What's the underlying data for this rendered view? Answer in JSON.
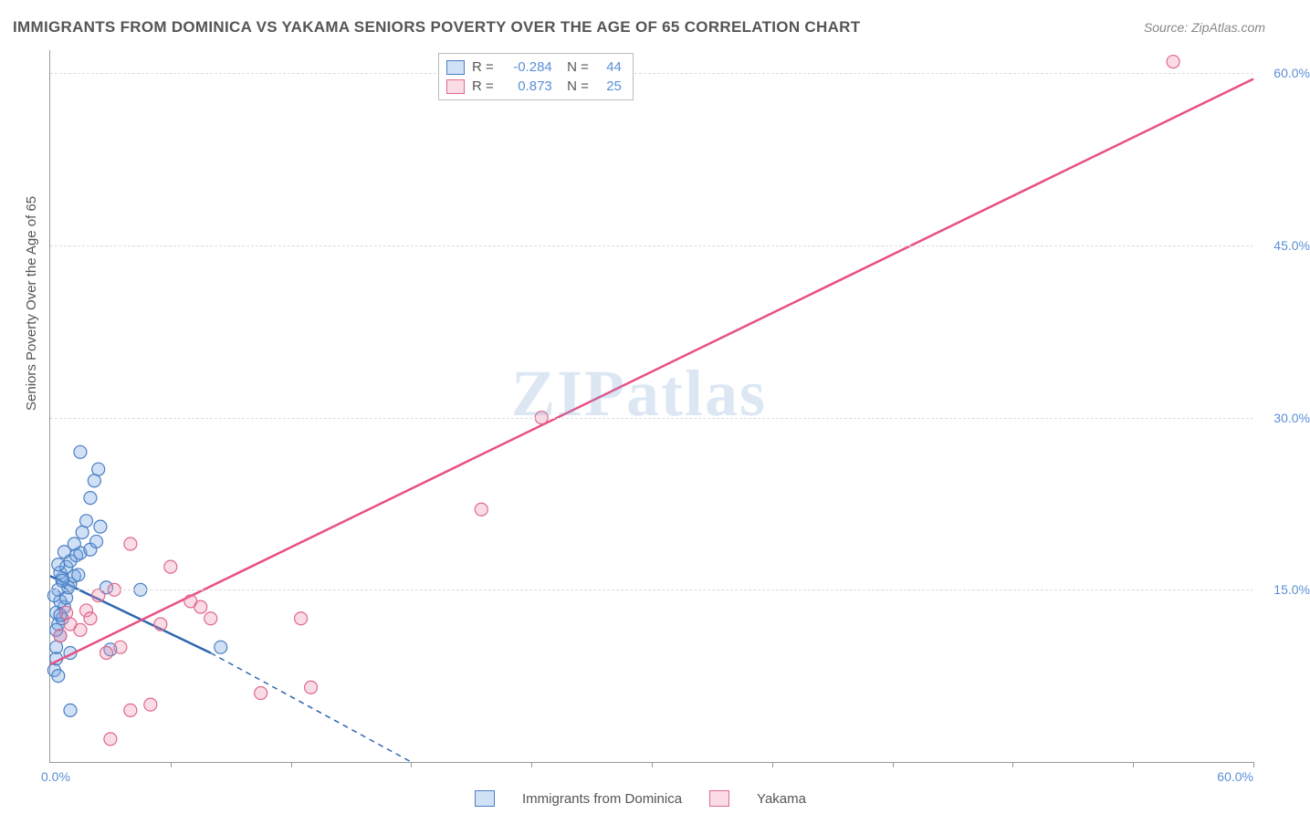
{
  "title": "IMMIGRANTS FROM DOMINICA VS YAKAMA SENIORS POVERTY OVER THE AGE OF 65 CORRELATION CHART",
  "source": "Source: ZipAtlas.com",
  "ylabel": "Seniors Poverty Over the Age of 65",
  "watermark": "ZIPatlas",
  "chart": {
    "type": "scatter",
    "xmin": 0,
    "xmax": 60,
    "ymin": 0,
    "ymax": 62,
    "x_label_min": "0.0%",
    "x_label_max": "60.0%",
    "y_ticks": [
      {
        "v": 15,
        "label": "15.0%"
      },
      {
        "v": 30,
        "label": "30.0%"
      },
      {
        "v": 45,
        "label": "45.0%"
      },
      {
        "v": 60,
        "label": "60.0%"
      }
    ],
    "x_tick_marks": [
      6,
      12,
      18,
      24,
      30,
      36,
      42,
      48,
      54,
      60
    ],
    "background_color": "#ffffff",
    "grid_color": "#dddddd",
    "axis_color": "#999999",
    "marker_radius": 7,
    "marker_stroke_width": 1.2,
    "line_width_solid": 2.5,
    "line_width_dashed": 1.5
  },
  "series": [
    {
      "name": "Immigrants from Dominica",
      "fill": "rgba(120,165,225,0.35)",
      "stroke": "#4a7fc4",
      "line_color": "#2e66b0",
      "R": "-0.284",
      "N": "44",
      "trend": {
        "x1": 0,
        "y1": 16.2,
        "x2_solid": 8,
        "y2_solid": 9.5,
        "x2_dash": 18,
        "y2_dash": 0
      },
      "points": [
        [
          0.2,
          8
        ],
        [
          0.3,
          9
        ],
        [
          0.4,
          7.5
        ],
        [
          0.3,
          10
        ],
        [
          0.5,
          11
        ],
        [
          0.4,
          12
        ],
        [
          0.6,
          12.5
        ],
        [
          0.3,
          13
        ],
        [
          0.7,
          13.5
        ],
        [
          0.5,
          14
        ],
        [
          0.8,
          14.3
        ],
        [
          0.4,
          15
        ],
        [
          0.9,
          15.2
        ],
        [
          1.0,
          15.5
        ],
        [
          0.6,
          16
        ],
        [
          1.2,
          16.2
        ],
        [
          0.5,
          16.5
        ],
        [
          1.4,
          16.3
        ],
        [
          0.8,
          17
        ],
        [
          1.0,
          17.5
        ],
        [
          1.3,
          18
        ],
        [
          0.7,
          18.3
        ],
        [
          1.5,
          18.2
        ],
        [
          2.0,
          18.5
        ],
        [
          1.2,
          19
        ],
        [
          2.3,
          19.2
        ],
        [
          1.6,
          20
        ],
        [
          2.5,
          20.5
        ],
        [
          1.8,
          21
        ],
        [
          2.0,
          23
        ],
        [
          2.2,
          24.5
        ],
        [
          2.4,
          25.5
        ],
        [
          1.5,
          27
        ],
        [
          1.0,
          4.5
        ],
        [
          1.0,
          9.5
        ],
        [
          3.0,
          9.8
        ],
        [
          4.5,
          15
        ],
        [
          8.5,
          10
        ],
        [
          0.3,
          11.5
        ],
        [
          0.5,
          12.8
        ],
        [
          0.2,
          14.5
        ],
        [
          0.6,
          15.8
        ],
        [
          0.4,
          17.2
        ],
        [
          2.8,
          15.2
        ]
      ]
    },
    {
      "name": "Yakama",
      "fill": "rgba(240,140,170,0.30)",
      "stroke": "#e06890",
      "line_color": "#e84f86",
      "R": "0.873",
      "N": "25",
      "trend": {
        "x1": 0,
        "y1": 8.5,
        "x2_solid": 60,
        "y2_solid": 59.5,
        "x2_dash": 60,
        "y2_dash": 59.5
      },
      "points": [
        [
          0.5,
          11
        ],
        [
          1.0,
          12
        ],
        [
          1.5,
          11.5
        ],
        [
          0.8,
          13
        ],
        [
          1.8,
          13.2
        ],
        [
          2.0,
          12.5
        ],
        [
          2.4,
          14.5
        ],
        [
          3.2,
          15
        ],
        [
          4.0,
          19
        ],
        [
          2.8,
          9.5
        ],
        [
          3.5,
          10
        ],
        [
          5.5,
          12
        ],
        [
          6.0,
          17
        ],
        [
          7.0,
          14
        ],
        [
          7.5,
          13.5
        ],
        [
          8.0,
          12.5
        ],
        [
          12.5,
          12.5
        ],
        [
          13.0,
          6.5
        ],
        [
          10.5,
          6
        ],
        [
          3.0,
          2
        ],
        [
          4.0,
          4.5
        ],
        [
          5.0,
          5
        ],
        [
          21.5,
          22
        ],
        [
          24.5,
          30
        ],
        [
          56,
          61
        ]
      ]
    }
  ],
  "legend_bottom": {
    "items": [
      "Immigrants from Dominica",
      "Yakama"
    ]
  }
}
